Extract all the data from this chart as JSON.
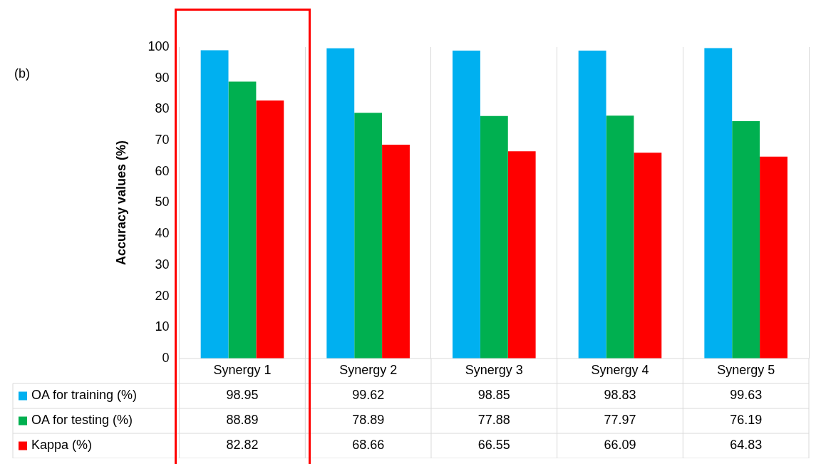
{
  "chart_data": {
    "type": "bar",
    "ylabel": "Accuracy values (%)",
    "annotations": [
      "(b)"
    ],
    "categories": [
      "Synergy 1",
      "Synergy 2",
      "Synergy 3",
      "Synergy 4",
      "Synergy 5"
    ],
    "series": [
      {
        "name": "OA for training (%)",
        "color": "#00b0f0",
        "values": [
          98.95,
          99.62,
          98.85,
          98.83,
          99.63
        ]
      },
      {
        "name": "OA for testing (%)",
        "color": "#00b050",
        "values": [
          88.89,
          78.89,
          77.88,
          77.97,
          76.19
        ]
      },
      {
        "name": "Kappa (%)",
        "color": "#ff0000",
        "values": [
          82.82,
          68.66,
          66.55,
          66.09,
          64.83
        ]
      }
    ],
    "ylim": [
      0,
      100
    ],
    "yticks": [
      0,
      10,
      20,
      30,
      40,
      50,
      60,
      70,
      80,
      90,
      100
    ],
    "grid": "x",
    "legend": "bottom",
    "data_labels": true
  }
}
